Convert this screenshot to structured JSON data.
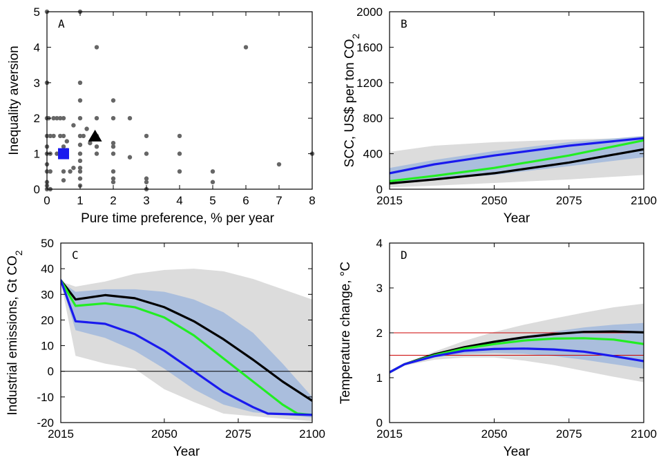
{
  "colors": {
    "black_series": "#000000",
    "green_series": "#22ee22",
    "blue_series": "#1a1aee",
    "grey_band": "#dcdcdc",
    "blue_band": "#aabedd",
    "points": "#666666",
    "threshold_lines": "#cc0000"
  },
  "chart_data": [
    {
      "panel": "A",
      "type": "scatter",
      "xlabel": "Pure time preference, % per year",
      "ylabel": "Inequality aversion",
      "xlim": [
        0,
        8
      ],
      "ylim": [
        0,
        5
      ],
      "xticks": [
        0,
        1,
        2,
        3,
        4,
        5,
        6,
        7,
        8
      ],
      "yticks": [
        0,
        1,
        2,
        3,
        4,
        5
      ],
      "points": [
        [
          0,
          5
        ],
        [
          0,
          3
        ],
        [
          0,
          2
        ],
        [
          0,
          1.5
        ],
        [
          0,
          1.2
        ],
        [
          0,
          1
        ],
        [
          0,
          0.7
        ],
        [
          0,
          0.5
        ],
        [
          0,
          0.2
        ],
        [
          0,
          0.1
        ],
        [
          0,
          0
        ],
        [
          0.05,
          2
        ],
        [
          0.1,
          1.5
        ],
        [
          0.1,
          1
        ],
        [
          0.1,
          0.5
        ],
        [
          0.1,
          0
        ],
        [
          0.2,
          2
        ],
        [
          0.2,
          1.5
        ],
        [
          0.3,
          2
        ],
        [
          0.3,
          1
        ],
        [
          0.4,
          2
        ],
        [
          0.4,
          1.5
        ],
        [
          0.4,
          0.95
        ],
        [
          0.5,
          2
        ],
        [
          0.5,
          1.5
        ],
        [
          0.5,
          1.2
        ],
        [
          0.5,
          1
        ],
        [
          0.5,
          0.5
        ],
        [
          0.5,
          0.25
        ],
        [
          0.6,
          1.35
        ],
        [
          0.6,
          1.1
        ],
        [
          0.7,
          0.5
        ],
        [
          0.8,
          1.8
        ],
        [
          0.8,
          0.6
        ],
        [
          1,
          5
        ],
        [
          1,
          3
        ],
        [
          1,
          2.5
        ],
        [
          1,
          2
        ],
        [
          1,
          1.5
        ],
        [
          1,
          1.25
        ],
        [
          1,
          1
        ],
        [
          1,
          0.8
        ],
        [
          1,
          0.6
        ],
        [
          1,
          0.5
        ],
        [
          1,
          0.3
        ],
        [
          1,
          0.1
        ],
        [
          1.1,
          1.5
        ],
        [
          1.2,
          1.7
        ],
        [
          1.3,
          1.3
        ],
        [
          1.5,
          4
        ],
        [
          1.5,
          2
        ],
        [
          1.5,
          1.5
        ],
        [
          1.5,
          1.2
        ],
        [
          1.5,
          1
        ],
        [
          2,
          2.5
        ],
        [
          2,
          2
        ],
        [
          2,
          1.3
        ],
        [
          2,
          1.2
        ],
        [
          2,
          1
        ],
        [
          2,
          0.5
        ],
        [
          2,
          0.3
        ],
        [
          2,
          0.2
        ],
        [
          2.5,
          2
        ],
        [
          2.5,
          0.9
        ],
        [
          3,
          1.5
        ],
        [
          3,
          1
        ],
        [
          3,
          0.3
        ],
        [
          3,
          0.2
        ],
        [
          3,
          0
        ],
        [
          4,
          1.5
        ],
        [
          4,
          1
        ],
        [
          4,
          0.5
        ],
        [
          5,
          0.5
        ],
        [
          5,
          0.2
        ],
        [
          6,
          4
        ],
        [
          7,
          0.7
        ],
        [
          8,
          1
        ]
      ],
      "marker_triangle": [
        1.45,
        1.5
      ],
      "marker_square": [
        0.5,
        1.0
      ]
    },
    {
      "panel": "B",
      "type": "line",
      "xlabel": "Year",
      "ylabel": "SCC, US$ per ton CO2",
      "xlim": [
        2015,
        2100
      ],
      "ylim": [
        0,
        2000
      ],
      "xticks": [
        2015,
        2050,
        2075,
        2100
      ],
      "yticks": [
        0,
        400,
        800,
        1200,
        1600,
        2000
      ],
      "x": [
        2015,
        2030,
        2050,
        2075,
        2100
      ],
      "grey_band": {
        "upper": [
          420,
          490,
          530,
          560,
          580
        ],
        "lower": [
          20,
          40,
          70,
          110,
          160
        ]
      },
      "blue_band": {
        "upper": [
          240,
          330,
          430,
          530,
          600
        ],
        "lower": [
          55,
          110,
          160,
          260,
          360
        ]
      },
      "series": [
        {
          "color": "black",
          "values": [
            65,
            110,
            180,
            300,
            450
          ]
        },
        {
          "color": "green",
          "values": [
            90,
            150,
            240,
            380,
            550
          ]
        },
        {
          "color": "blue",
          "values": [
            180,
            280,
            380,
            490,
            575
          ]
        }
      ]
    },
    {
      "panel": "C",
      "type": "line",
      "xlabel": "Year",
      "ylabel": "Industrial emissions, Gt CO2",
      "xlim": [
        2015,
        2100
      ],
      "ylim": [
        -20,
        50
      ],
      "xticks": [
        2015,
        2050,
        2075,
        2100
      ],
      "yticks": [
        -20,
        -10,
        0,
        10,
        20,
        30,
        40,
        50
      ],
      "zero_line": 0,
      "grey_band": {
        "x_upper": [
          2015,
          2020,
          2030,
          2040,
          2050,
          2060,
          2070,
          2080,
          2090,
          2100
        ],
        "upper": [
          35,
          33,
          35,
          38,
          39.5,
          40,
          39,
          36,
          32,
          28
        ],
        "x_lower": [
          2015,
          2020,
          2030,
          2040,
          2050,
          2060,
          2070,
          2080,
          2090,
          2100
        ],
        "lower": [
          35,
          6,
          3,
          1,
          -7,
          -12,
          -16.5,
          -17.5,
          -18.5,
          -19.5
        ]
      },
      "blue_band": {
        "x": [
          2015,
          2020,
          2030,
          2040,
          2050,
          2060,
          2070,
          2080,
          2090,
          2100
        ],
        "upper": [
          35,
          31,
          32,
          32,
          31,
          28,
          23,
          15,
          3,
          -10
        ],
        "lower": [
          35,
          16,
          13,
          8,
          1,
          -7,
          -13,
          -16,
          -17,
          -18
        ]
      },
      "series": [
        {
          "color": "black",
          "x": [
            2015,
            2020,
            2030,
            2040,
            2050,
            2060,
            2070,
            2080,
            2090,
            2100
          ],
          "values": [
            35.5,
            28,
            29.7,
            28.5,
            25,
            19.5,
            12.5,
            4.5,
            -4,
            -11.5
          ]
        },
        {
          "color": "green",
          "x": [
            2015,
            2020,
            2030,
            2040,
            2050,
            2060,
            2070,
            2080,
            2090,
            2095,
            2100
          ],
          "values": [
            35.5,
            25.5,
            26.5,
            25,
            21,
            14,
            5,
            -4,
            -13,
            -16.5,
            -17
          ]
        },
        {
          "color": "blue",
          "x": [
            2015,
            2020,
            2030,
            2040,
            2050,
            2060,
            2070,
            2080,
            2085,
            2100
          ],
          "values": [
            35.5,
            19.5,
            18.5,
            14.5,
            8,
            0,
            -8,
            -14,
            -16.5,
            -17
          ]
        }
      ]
    },
    {
      "panel": "D",
      "type": "line",
      "xlabel": "Year",
      "ylabel": "Temperature change, °C",
      "xlim": [
        2015,
        2100
      ],
      "ylim": [
        0,
        4
      ],
      "xticks": [
        2015,
        2050,
        2075,
        2100
      ],
      "yticks": [
        0,
        1,
        2,
        3,
        4
      ],
      "reference_lines": [
        2.0,
        1.5
      ],
      "grey_band": {
        "x": [
          2015,
          2020,
          2030,
          2040,
          2050,
          2060,
          2070,
          2080,
          2090,
          2100
        ],
        "upper": [
          1.12,
          1.32,
          1.58,
          1.82,
          2.02,
          2.18,
          2.32,
          2.45,
          2.57,
          2.65
        ],
        "lower": [
          1.12,
          1.27,
          1.4,
          1.45,
          1.45,
          1.38,
          1.28,
          1.15,
          1.02,
          0.9
        ]
      },
      "blue_band": {
        "x": [
          2015,
          2020,
          2030,
          2040,
          2050,
          2060,
          2070,
          2080,
          2090,
          2100
        ],
        "upper": [
          1.12,
          1.3,
          1.52,
          1.7,
          1.83,
          1.93,
          2.03,
          2.12,
          2.18,
          2.22
        ],
        "lower": [
          1.12,
          1.28,
          1.45,
          1.53,
          1.55,
          1.53,
          1.48,
          1.4,
          1.3,
          1.2
        ]
      },
      "series": [
        {
          "color": "black",
          "x": [
            2015,
            2020,
            2030,
            2040,
            2050,
            2060,
            2070,
            2080,
            2090,
            2100
          ],
          "values": [
            1.12,
            1.3,
            1.52,
            1.68,
            1.8,
            1.9,
            1.97,
            2.02,
            2.03,
            2.01
          ]
        },
        {
          "color": "green",
          "x": [
            2015,
            2020,
            2030,
            2040,
            2050,
            2060,
            2070,
            2080,
            2090,
            2100
          ],
          "values": [
            1.12,
            1.3,
            1.5,
            1.65,
            1.75,
            1.83,
            1.87,
            1.88,
            1.85,
            1.75
          ]
        },
        {
          "color": "blue",
          "x": [
            2015,
            2020,
            2030,
            2040,
            2050,
            2060,
            2070,
            2080,
            2090,
            2100
          ],
          "values": [
            1.12,
            1.3,
            1.48,
            1.6,
            1.64,
            1.65,
            1.63,
            1.58,
            1.48,
            1.37
          ]
        }
      ]
    }
  ]
}
